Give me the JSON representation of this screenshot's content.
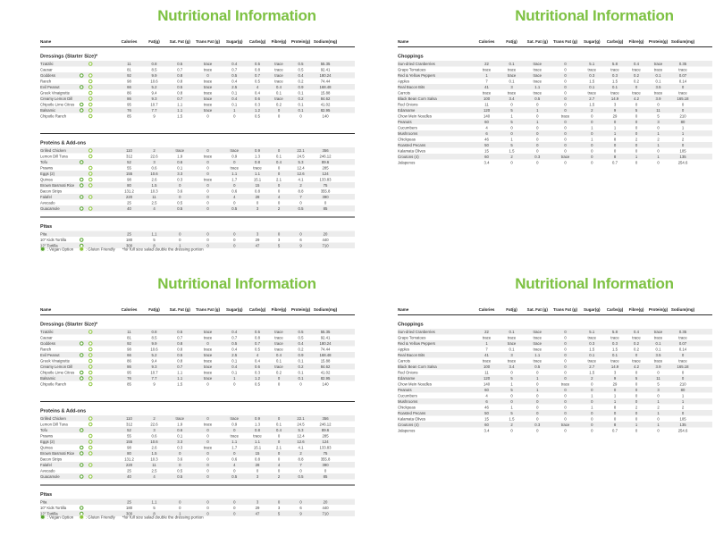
{
  "title": "Nutritional Information",
  "colors": {
    "title_green": "#7DC142",
    "vegan_green": "#55A32D",
    "gluten_green": "#8DC63F",
    "zebra": "#ECECEC"
  },
  "columns": [
    "Name",
    "Calories",
    "Fat(g)",
    "Sat. Fat (g)",
    "Trans Fat (g)",
    "Sugar(g)",
    "Carbs(g)",
    "Fibre(g)",
    "Protein(g)",
    "Sodium(mg)"
  ],
  "legend": {
    "vegan_label": ": Vegan Option",
    "gluten_label": ": Gluten Friendly",
    "note": "*for full size salad double the dressing portion"
  },
  "grid": [
    0,
    1,
    0,
    1
  ],
  "pages": [
    {
      "id": "salads-page",
      "show_legend": true,
      "sections": [
        {
          "title": "Dressings (Starter Size)*",
          "rows": [
            {
              "name": "Tzatziki",
              "flags": [
                "g"
              ],
              "values": [
                "11",
                "0.8",
                "0.5",
                "trace",
                "0.4",
                "0.5",
                "trace",
                "0.5",
                "55.35"
              ]
            },
            {
              "name": "Caesar",
              "flags": [],
              "values": [
                "81",
                "8.5",
                "0.7",
                "trace",
                "0.7",
                "0.8",
                "trace",
                "0.5",
                "92.41"
              ]
            },
            {
              "name": "Goddess",
              "flags": [
                "v",
                "g"
              ],
              "values": [
                "92",
                "9.9",
                "0.8",
                "0",
                "0.5",
                "0.7",
                "trace",
                "0.4",
                "180.24"
              ]
            },
            {
              "name": "Ranch",
              "flags": [
                "g"
              ],
              "values": [
                "98",
                "10.6",
                "0.8",
                "trace",
                "0.4",
                "0.5",
                "trace",
                "0.2",
                "74.44"
              ]
            },
            {
              "name": "Evil Peanut",
              "flags": [
                "v",
                "g"
              ],
              "values": [
                "66",
                "5.2",
                "0.5",
                "trace",
                "2.5",
                "4",
                "0.4",
                "0.9",
                "168.48"
              ]
            },
            {
              "name": "Greek Vinaigrette",
              "flags": [
                "g"
              ],
              "values": [
                "86",
                "9.4",
                "0.8",
                "trace",
                "0.1",
                "0.4",
                "0.1",
                "0.1",
                "15.88"
              ]
            },
            {
              "name": "Creamy Lemon Dill",
              "flags": [
                "g"
              ],
              "values": [
                "86",
                "9.3",
                "0.7",
                "trace",
                "0.4",
                "0.6",
                "trace",
                "0.2",
                "84.62"
              ]
            },
            {
              "name": "Chipotle Lime Citrus",
              "flags": [
                "v",
                "g"
              ],
              "values": [
                "95",
                "10.7",
                "1.1",
                "trace",
                "0.1",
                "0.3",
                "0.2",
                "0.1",
                "41.02"
              ]
            },
            {
              "name": "Balsamic",
              "flags": [
                "v",
                "g"
              ],
              "values": [
                "76",
                "7.7",
                "1.1",
                "trace",
                "1",
                "1.2",
                "0",
                "0.1",
                "82.95"
              ]
            },
            {
              "name": "Chipotle Ranch",
              "flags": [
                "g"
              ],
              "values": [
                "85",
                "9",
                "1.5",
                "0",
                "0",
                "0.5",
                "0",
                "0",
                "140"
              ]
            }
          ]
        },
        {
          "title": "Proteins & Add-ons",
          "rows": [
            {
              "name": "Grilled Chicken",
              "flags": [
                "g"
              ],
              "values": [
                "110",
                "2",
                "trace",
                "0",
                "trace",
                "0.9",
                "0",
                "22.1",
                "356"
              ]
            },
            {
              "name": "Lemon Dill Tuna",
              "flags": [
                "g"
              ],
              "values": [
                "312",
                "22.6",
                "1.9",
                "trace",
                "0.9",
                "1.3",
                "0.1",
                "24.5",
                "246.12"
              ]
            },
            {
              "name": "Tofu",
              "flags": [
                "v"
              ],
              "values": [
                "52",
                "3",
                "0.6",
                "0",
                "0",
                "0.8",
                "0.4",
                "5.3",
                "89.6"
              ]
            },
            {
              "name": "Prawns",
              "flags": [
                "g"
              ],
              "values": [
                "55",
                "0.6",
                "0.1",
                "0",
                "trace",
                "trace",
                "0",
                "12.4",
                "285"
              ]
            },
            {
              "name": "Eggs (2)",
              "flags": [
                "g"
              ],
              "values": [
                "155",
                "10.6",
                "3.3",
                "0",
                "1.1",
                "1.1",
                "0",
                "12.6",
                "124"
              ]
            },
            {
              "name": "Quinoa",
              "flags": [
                "v",
                "g"
              ],
              "values": [
                "98",
                "2.6",
                "0.3",
                "trace",
                "1.7",
                "15.1",
                "2.1",
                "4.1",
                "133.83"
              ]
            },
            {
              "name": "Brown Basmati Rice",
              "flags": [
                "v",
                "g"
              ],
              "values": [
                "80",
                "1.5",
                "0",
                "0",
                "0",
                "15",
                "0",
                "2",
                "75"
              ]
            },
            {
              "name": "Bacon Strips",
              "flags": [],
              "values": [
                "131.2",
                "10.3",
                "3.6",
                "0",
                "0.6",
                "0.8",
                "0",
                "8.8",
                "355.8"
              ]
            },
            {
              "name": "Falafel",
              "flags": [
                "v",
                "g"
              ],
              "values": [
                "220",
                "11",
                "0",
                "0",
                "4",
                "28",
                "4",
                "7",
                "390"
              ]
            },
            {
              "name": "Avocado",
              "flags": [],
              "values": [
                "25",
                "2.5",
                "0.5",
                "0",
                "0",
                "0",
                "0",
                "0",
                "0"
              ]
            },
            {
              "name": "Guacamole",
              "flags": [
                "v",
                "g"
              ],
              "values": [
                "40",
                "4",
                "0.5",
                "0",
                "0.5",
                "3",
                "2",
                "0.5",
                "85"
              ]
            }
          ]
        },
        {
          "title": "Pitas",
          "rows": [
            {
              "name": "Pita",
              "flags": [],
              "values": [
                "25",
                "1.1",
                "0",
                "0",
                "0",
                "3",
                "0",
                "0",
                "20"
              ]
            },
            {
              "name": "10\" Kids Tortilla",
              "flags": [
                "v"
              ],
              "values": [
                "180",
                "5",
                "0",
                "0",
                "0",
                "29",
                "3",
                "6",
                "440"
              ]
            },
            {
              "name": "12\" Tortilla",
              "flags": [
                "v"
              ],
              "values": [
                "300",
                "8",
                "1",
                "0",
                "0",
                "47",
                "5",
                "9",
                "710"
              ]
            }
          ]
        }
      ]
    },
    {
      "id": "choppings-page",
      "show_legend": false,
      "sections": [
        {
          "title": "Choppings",
          "rows": [
            {
              "name": "Sun-dried Cranberries",
              "flags": [],
              "values": [
                "22",
                "0.1",
                "trace",
                "0",
                "5.1",
                "5.8",
                "0.4",
                "trace",
                "0.35"
              ]
            },
            {
              "name": "Grape Tomatoes",
              "flags": [],
              "values": [
                "trace",
                "trace",
                "trace",
                "0",
                "trace",
                "trace",
                "trace",
                "trace",
                "trace"
              ]
            },
            {
              "name": "Red & Yellow Peppers",
              "flags": [],
              "values": [
                "1",
                "trace",
                "trace",
                "0",
                "0.3",
                "0.3",
                "0.2",
                "0.1",
                "0.07"
              ]
            },
            {
              "name": "Apples",
              "flags": [],
              "values": [
                "7",
                "0.1",
                "trace",
                "0",
                "1.5",
                "1.5",
                "0.2",
                "0.1",
                "0.14"
              ]
            },
            {
              "name": "Real Bacon Bits",
              "flags": [],
              "values": [
                "41",
                "3",
                "1.1",
                "0",
                "0.1",
                "0.1",
                "0",
                "3.5",
                "0"
              ]
            },
            {
              "name": "Carrots",
              "flags": [],
              "values": [
                "trace",
                "trace",
                "trace",
                "0",
                "trace",
                "trace",
                "trace",
                "trace",
                "trace"
              ]
            },
            {
              "name": "Black Bean Corn Salsa",
              "flags": [],
              "values": [
                "100",
                "3.4",
                "0.5",
                "0",
                "2.7",
                "14.9",
                "4.2",
                "3.9",
                "165.18"
              ]
            },
            {
              "name": "Red Onions",
              "flags": [],
              "values": [
                "11",
                "0",
                "0",
                "0",
                "1.5",
                "3",
                "0",
                "0",
                "0"
              ]
            },
            {
              "name": "Edamame",
              "flags": [],
              "values": [
                "120",
                "5",
                "1",
                "0",
                "2",
                "9",
                "5",
                "11",
                "0"
              ]
            },
            {
              "name": "Chow Mein Noodles",
              "flags": [],
              "values": [
                "140",
                "1",
                "0",
                "trace",
                "0",
                "29",
                "0",
                "5",
                "210"
              ]
            },
            {
              "name": "Peanuts",
              "flags": [],
              "values": [
                "60",
                "5",
                "1",
                "0",
                "0",
                "0",
                "0",
                "3",
                "80"
              ]
            },
            {
              "name": "Cucumbers",
              "flags": [],
              "values": [
                "4",
                "0",
                "0",
                "0",
                "1",
                "1",
                "0",
                "0",
                "1"
              ]
            },
            {
              "name": "Mushrooms",
              "flags": [],
              "values": [
                "6",
                "0",
                "0",
                "0",
                "0",
                "1",
                "0",
                "1",
                "1"
              ]
            },
            {
              "name": "Chickpeas",
              "flags": [],
              "values": [
                "46",
                "1",
                "0",
                "0",
                "1",
                "8",
                "2",
                "2",
                "2"
              ]
            },
            {
              "name": "Roasted Pecans",
              "flags": [],
              "values": [
                "50",
                "5",
                "0",
                "0",
                "0",
                "0",
                "0",
                "1",
                "0"
              ]
            },
            {
              "name": "Kalamata Olives",
              "flags": [],
              "values": [
                "15",
                "1.5",
                "0",
                "0",
                "0",
                "0",
                "0",
                "0",
                "105"
              ]
            },
            {
              "name": "Croutons (4)",
              "flags": [],
              "values": [
                "60",
                "2",
                "0.3",
                "trace",
                "0",
                "8",
                "1",
                "1",
                "135"
              ]
            },
            {
              "name": "Jalapenos",
              "flags": [],
              "values": [
                "3.4",
                "0",
                "0",
                "0",
                "0",
                "0.7",
                "0",
                "0",
                "254.6"
              ]
            }
          ]
        }
      ]
    }
  ]
}
